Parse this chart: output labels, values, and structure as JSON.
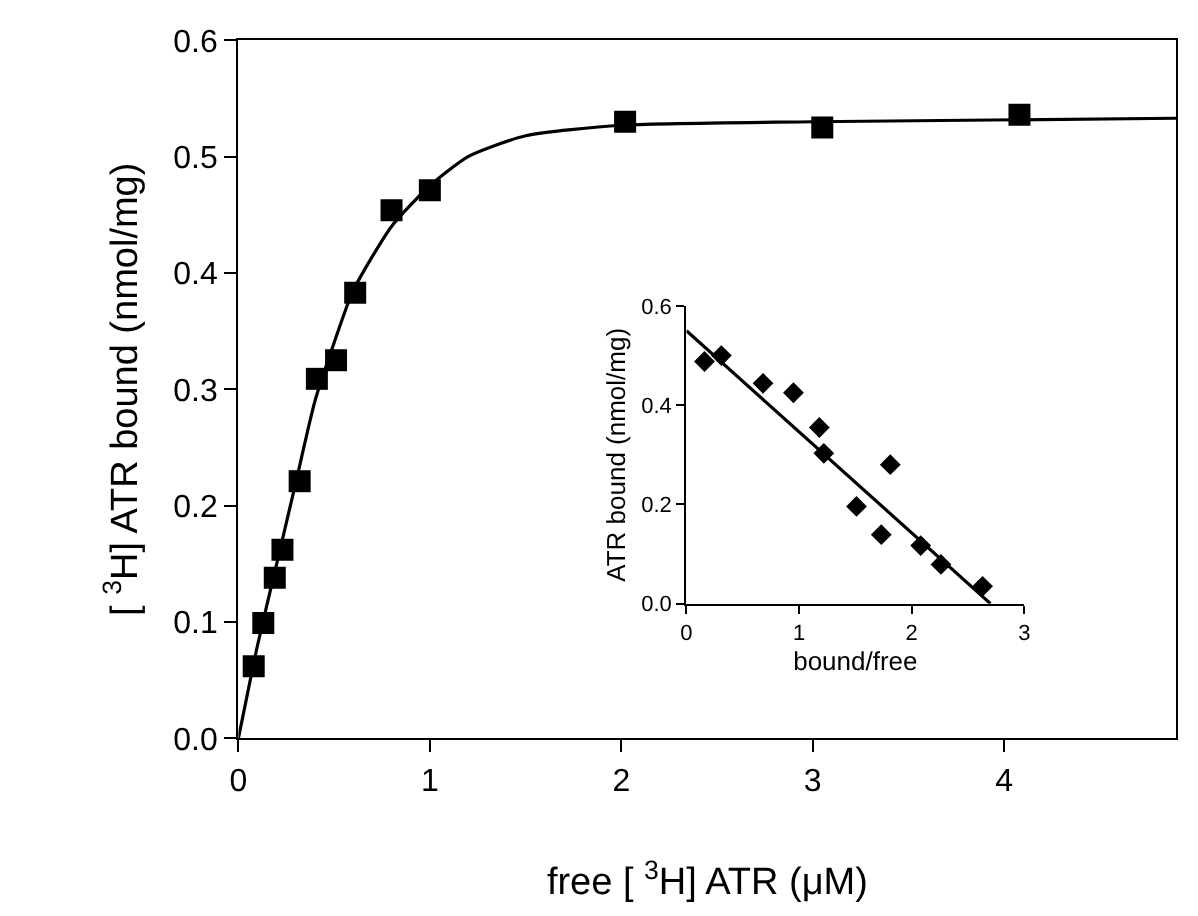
{
  "chart_data": [
    {
      "type": "scatter",
      "xlabel": "free [ $^{3}$H] ATR (μM)",
      "ylabel": "[ $^{3}$H] ATR bound (nmol/mg)",
      "xlim": [
        0,
        4.9
      ],
      "xticks": [
        0,
        1,
        2,
        3,
        4
      ],
      "ylim": [
        0,
        0.6
      ],
      "yticks": [
        {
          "value": 0,
          "label": "0.0"
        },
        0.1,
        0.2,
        0.3,
        0.4,
        0.5,
        0.6
      ],
      "series": [
        {
          "marker": "square",
          "color": "#000000",
          "x": [
            0.08,
            0.13,
            0.19,
            0.23,
            0.32,
            0.41,
            0.51,
            0.61,
            0.8,
            1.0,
            2.02,
            3.05,
            4.08
          ],
          "values": [
            0.062,
            0.099,
            0.138,
            0.162,
            0.221,
            0.309,
            0.325,
            0.383,
            0.454,
            0.471,
            0.53,
            0.525,
            0.536
          ]
        },
        {
          "type": "line",
          "color": "#000000",
          "line_style": "solid",
          "x": [
            0,
            0.1,
            0.2,
            0.3,
            0.4,
            0.5,
            0.6,
            0.8,
            1.0,
            1.2,
            1.5,
            2.0,
            3.0,
            4.9
          ],
          "values": [
            0,
            0.08,
            0.15,
            0.22,
            0.29,
            0.34,
            0.385,
            0.44,
            0.475,
            0.5,
            0.518,
            0.527,
            0.53,
            0.533
          ]
        }
      ]
    },
    {
      "type": "scatter",
      "xlabel": "bound/free",
      "ylabel": "ATR bound (nmol/mg)",
      "xlim": [
        0,
        3
      ],
      "xticks": [
        0,
        1,
        2,
        3
      ],
      "ylim": [
        0,
        0.6
      ],
      "yticks": [
        {
          "value": 0,
          "label": "0.0"
        },
        {
          "value": 0.2,
          "label": "0.2"
        },
        {
          "value": 0.4,
          "label": "0.4"
        },
        {
          "value": 0.6,
          "label": "0.6"
        }
      ],
      "series": [
        {
          "marker": "diamond",
          "color": "#000000",
          "x": [
            0.16,
            0.31,
            0.68,
            0.95,
            1.18,
            1.22,
            1.81,
            1.51,
            1.73,
            2.08,
            2.26,
            2.63
          ],
          "values": [
            0.488,
            0.5,
            0.444,
            0.425,
            0.355,
            0.303,
            0.28,
            0.196,
            0.139,
            0.117,
            0.079,
            0.035
          ]
        },
        {
          "type": "line",
          "color": "#000000",
          "line_style": "solid",
          "x": [
            0,
            2.7
          ],
          "values": [
            0.55,
            0
          ]
        }
      ]
    }
  ]
}
